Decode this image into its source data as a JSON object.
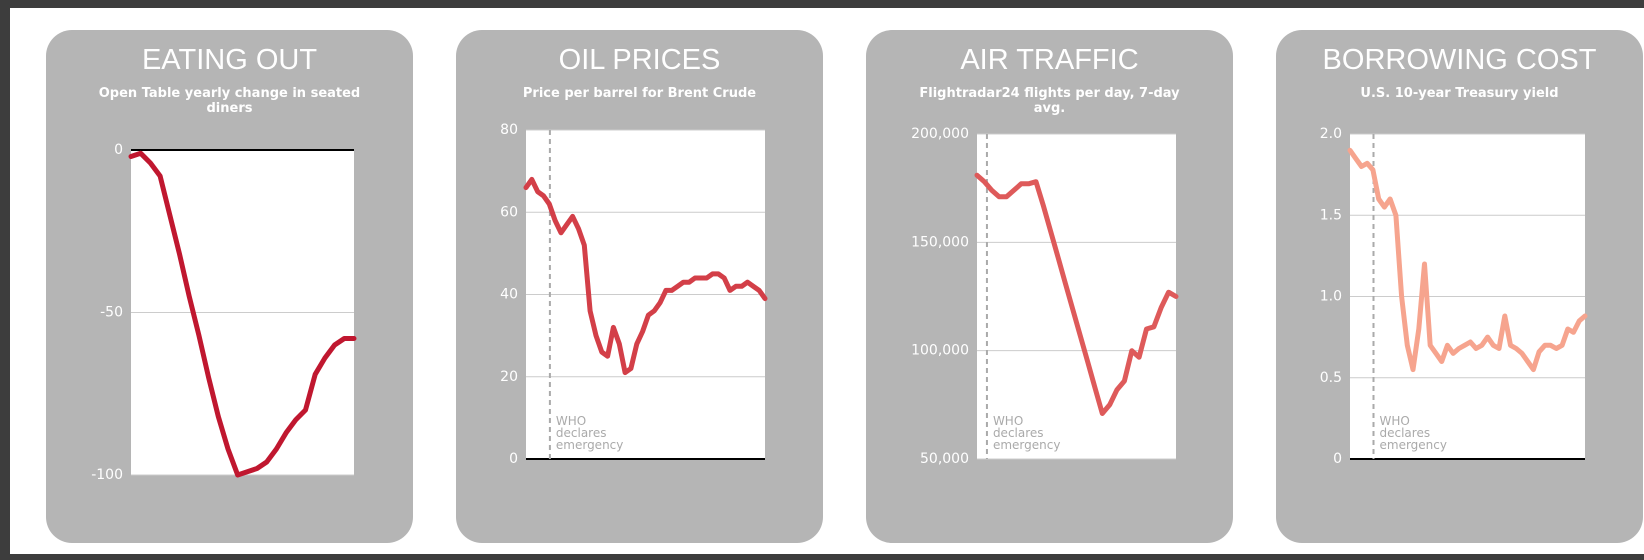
{
  "chart_data": [
    {
      "type": "line",
      "title": "EATING OUT",
      "subtitle": "Open Table yearly change in seated diners",
      "categories": [
        null,
        null,
        null,
        null,
        null,
        null,
        null,
        null,
        null,
        null,
        null,
        null,
        null,
        null,
        null,
        null,
        null,
        null,
        null,
        null,
        null,
        null,
        null,
        null
      ],
      "values": [
        -2,
        -1,
        -4,
        -8,
        -20,
        -32,
        -45,
        -57,
        -70,
        -82,
        -92,
        -100,
        -99,
        -98,
        -96,
        -92,
        -87,
        -83,
        -80,
        -69,
        -64,
        -60,
        -58,
        -58
      ],
      "color": "#c0172f",
      "ylim": [
        -100,
        0
      ],
      "yticks": [
        0,
        -50,
        -100
      ],
      "grid": true
    },
    {
      "type": "line",
      "title": "OIL PRICES",
      "subtitle": "Price per barrel for Brent Crude",
      "categories": [
        null,
        null,
        null,
        null,
        null,
        null,
        null,
        null,
        null,
        null,
        null,
        null,
        null,
        null,
        null,
        null,
        null,
        null,
        null,
        null,
        null,
        null,
        null,
        null,
        null,
        null,
        null,
        null,
        null,
        null,
        null,
        null,
        null,
        null,
        null,
        null,
        null,
        null,
        null,
        null,
        null,
        null
      ],
      "values": [
        66,
        68,
        65,
        64,
        62,
        58,
        55,
        57,
        59,
        56,
        52,
        36,
        30,
        26,
        25,
        32,
        28,
        21,
        22,
        28,
        31,
        35,
        36,
        38,
        41,
        41,
        42,
        43,
        43,
        44,
        44,
        44,
        45,
        45,
        44,
        41,
        42,
        42,
        43,
        42,
        41,
        39
      ],
      "color": "#d33f48",
      "ylim": [
        0,
        80
      ],
      "yticks": [
        0,
        20,
        40,
        60,
        80
      ],
      "grid": true,
      "annotation": "WHO declares emergency"
    },
    {
      "type": "line",
      "title": "AIR TRAFFIC",
      "subtitle": "Flightradar24 flights per day, 7-day avg.",
      "categories": [
        null,
        null,
        null,
        null,
        null,
        null,
        null,
        null,
        null,
        null,
        null,
        null,
        null,
        null,
        null,
        null,
        null,
        null,
        null,
        null,
        null,
        null,
        null,
        null,
        null,
        null,
        null,
        null
      ],
      "values": [
        181000,
        178000,
        174000,
        171000,
        171000,
        174000,
        177000,
        177000,
        178000,
        167000,
        155000,
        143000,
        131000,
        119000,
        107000,
        95000,
        83000,
        71000,
        75000,
        82000,
        86000,
        100000,
        97000,
        110000,
        111000,
        120000,
        127000,
        125000
      ],
      "color": "#de5a5a",
      "ylim": [
        50000,
        200000
      ],
      "yticks": [
        {
          "value": 50000,
          "label": "50,000"
        },
        {
          "value": 100000,
          "label": "100,000"
        },
        {
          "value": 150000,
          "label": "150,000"
        },
        {
          "value": 200000,
          "label": "200,000"
        }
      ],
      "grid": true,
      "annotation": "WHO declares emergency"
    },
    {
      "type": "line",
      "title": "BORROWING COST",
      "subtitle": "U.S. 10-year Treasury yield",
      "categories": [
        null,
        null,
        null,
        null,
        null,
        null,
        null,
        null,
        null,
        null,
        null,
        null,
        null,
        null,
        null,
        null,
        null,
        null,
        null,
        null,
        null,
        null,
        null,
        null,
        null,
        null,
        null,
        null,
        null,
        null,
        null,
        null,
        null,
        null,
        null,
        null,
        null,
        null,
        null,
        null,
        null,
        null
      ],
      "values": [
        1.9,
        1.85,
        1.8,
        1.82,
        1.78,
        1.6,
        1.55,
        1.6,
        1.5,
        1.0,
        0.7,
        0.55,
        0.8,
        1.2,
        0.7,
        0.65,
        0.6,
        0.7,
        0.65,
        0.68,
        0.7,
        0.72,
        0.68,
        0.7,
        0.75,
        0.7,
        0.68,
        0.88,
        0.7,
        0.68,
        0.65,
        0.6,
        0.55,
        0.66,
        0.7,
        0.7,
        0.68,
        0.7,
        0.8,
        0.78,
        0.85,
        0.88
      ],
      "color": "#f6a48e",
      "ylim": [
        0,
        2
      ],
      "yticks": [
        0,
        0.5,
        {
          "value": 1,
          "label": "1.0"
        },
        1.5,
        {
          "value": 2,
          "label": "2.0"
        }
      ],
      "grid": true,
      "annotation": "WHO declares emergency"
    }
  ]
}
